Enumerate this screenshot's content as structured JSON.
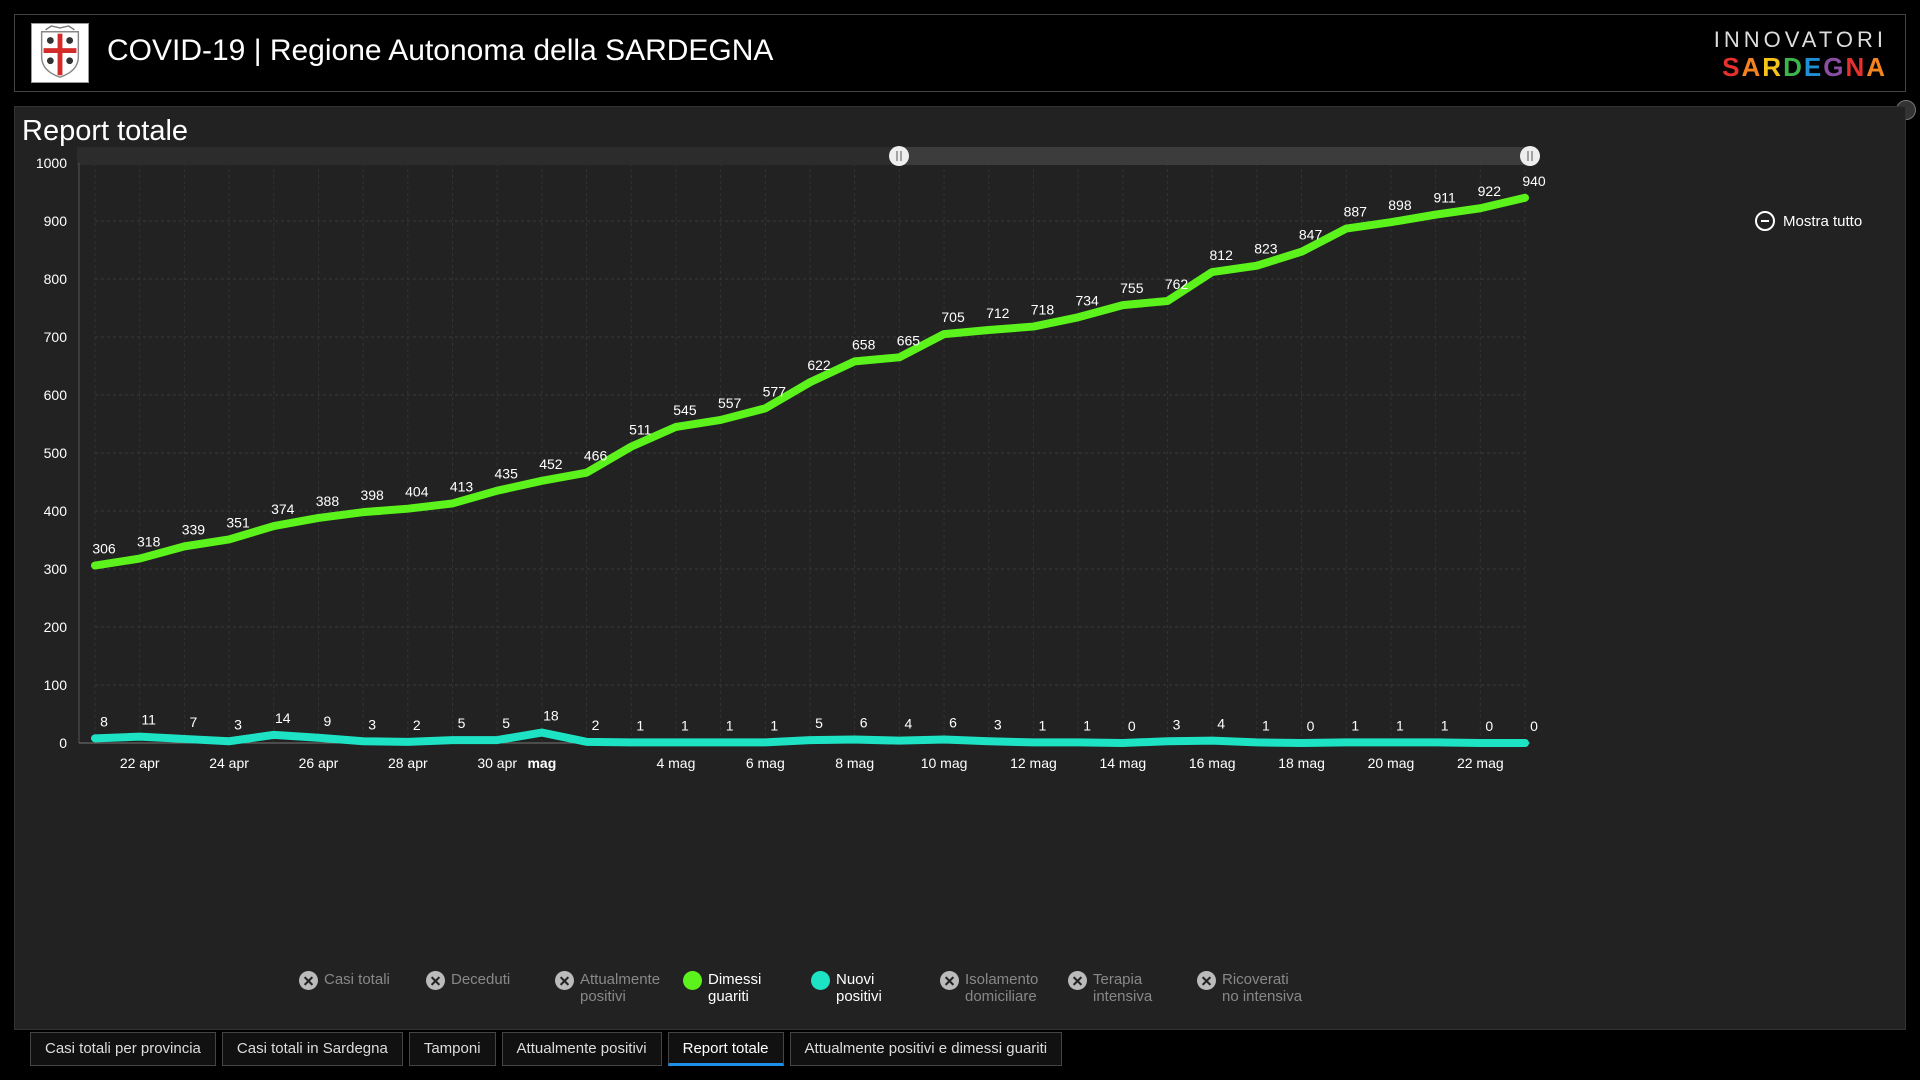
{
  "header": {
    "title": "COVID-19 | Regione Autonoma della SARDEGNA",
    "brand_top": "INNOVATORI",
    "brand_bottom": "SARDEGNA",
    "brand_colors": [
      "#e8312f",
      "#f58220",
      "#f7c31a",
      "#3cb54a",
      "#1e90d6",
      "#8a4fa3",
      "#e8312f",
      "#f58220"
    ]
  },
  "panel": {
    "title": "Report totale",
    "zoom_label": "Mostra tutto"
  },
  "legend": [
    {
      "label": "Casi totali",
      "active": false
    },
    {
      "label": "Deceduti",
      "active": false
    },
    {
      "label": "Attualmente positivi",
      "active": false
    },
    {
      "label": "Dimessi guariti",
      "active": true,
      "color": "#5cf21c"
    },
    {
      "label": "Nuovi positivi",
      "active": true,
      "color": "#1de3c4"
    },
    {
      "label": "Isolamento domiciliare",
      "active": false
    },
    {
      "label": "Terapia intensiva",
      "active": false
    },
    {
      "label": "Ricoverati no intensiva",
      "active": false
    }
  ],
  "tabs": [
    {
      "label": "Casi totali per provincia",
      "active": false
    },
    {
      "label": "Casi totali in Sardegna",
      "active": false
    },
    {
      "label": "Tamponi",
      "active": false
    },
    {
      "label": "Attualmente positivi",
      "active": false
    },
    {
      "label": "Report totale",
      "active": true
    },
    {
      "label": "Attualmente positivi e dimessi guariti",
      "active": false
    }
  ],
  "chart_data": {
    "type": "line",
    "x": [
      "21 apr",
      "22 apr",
      "23 apr",
      "24 apr",
      "25 apr",
      "26 apr",
      "27 apr",
      "28 apr",
      "29 apr",
      "30 apr",
      "1 mag",
      "2 mag",
      "3 mag",
      "4 mag",
      "5 mag",
      "6 mag",
      "7 mag",
      "8 mag",
      "9 mag",
      "10 mag",
      "11 mag",
      "12 mag",
      "13 mag",
      "14 mag",
      "15 mag",
      "16 mag",
      "17 mag",
      "18 mag",
      "19 mag",
      "20 mag",
      "21 mag",
      "22 mag",
      "23 mag"
    ],
    "x_tick_labels": [
      "22 apr",
      "24 apr",
      "26 apr",
      "28 apr",
      "30 apr",
      "mag",
      "4 mag",
      "6 mag",
      "8 mag",
      "10 mag",
      "12 mag",
      "14 mag",
      "16 mag",
      "18 mag",
      "20 mag",
      "22 mag"
    ],
    "y_ticks": [
      0,
      100,
      200,
      300,
      400,
      500,
      600,
      700,
      800,
      900,
      1000
    ],
    "ylim": [
      0,
      1000
    ],
    "grid": true,
    "series": [
      {
        "name": "Dimessi guariti",
        "color": "#5cf21c",
        "values": [
          306,
          318,
          339,
          351,
          374,
          388,
          398,
          404,
          413,
          435,
          452,
          466,
          511,
          545,
          557,
          577,
          622,
          658,
          665,
          705,
          712,
          718,
          734,
          755,
          762,
          812,
          823,
          847,
          887,
          898,
          911,
          922,
          940
        ]
      },
      {
        "name": "Nuovi positivi",
        "color": "#1de3c4",
        "values": [
          8,
          11,
          7,
          3,
          14,
          9,
          3,
          2,
          5,
          5,
          18,
          2,
          1,
          1,
          1,
          1,
          5,
          6,
          4,
          6,
          3,
          1,
          1,
          0,
          3,
          4,
          1,
          0,
          1,
          1,
          1,
          0,
          0
        ]
      }
    ]
  }
}
